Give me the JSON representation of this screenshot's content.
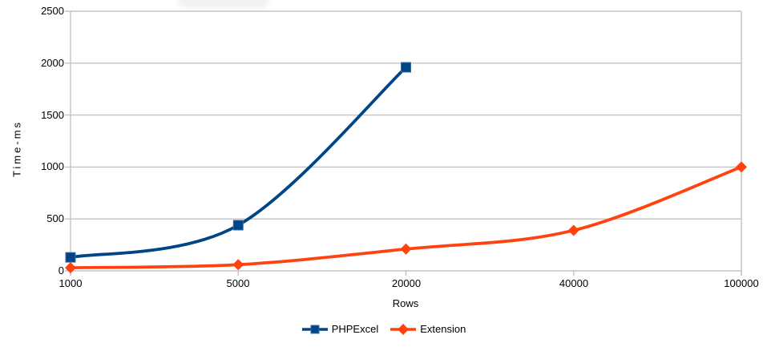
{
  "chart_data": {
    "type": "line",
    "title": "",
    "xlabel": "Rows",
    "ylabel": "Time-ms",
    "categories": [
      "1000",
      "5000",
      "20000",
      "40000",
      "100000"
    ],
    "series": [
      {
        "name": "PHPExcel",
        "color": "#004586",
        "marker": "square",
        "values": [
          130,
          440,
          1960,
          null,
          null
        ]
      },
      {
        "name": "Extension",
        "color": "#ff420e",
        "marker": "diamond",
        "values": [
          30,
          60,
          210,
          390,
          1000
        ]
      }
    ],
    "ylim": [
      0,
      2500
    ],
    "y_ticks": [
      "0",
      "500",
      "1000",
      "1500",
      "2000",
      "2500"
    ],
    "grid": "horizontal",
    "legend_position": "bottom",
    "smooth_lines": true,
    "gridline_color": "#c3c3c3",
    "text_color": "#000000",
    "background_color": "#ffffff"
  }
}
